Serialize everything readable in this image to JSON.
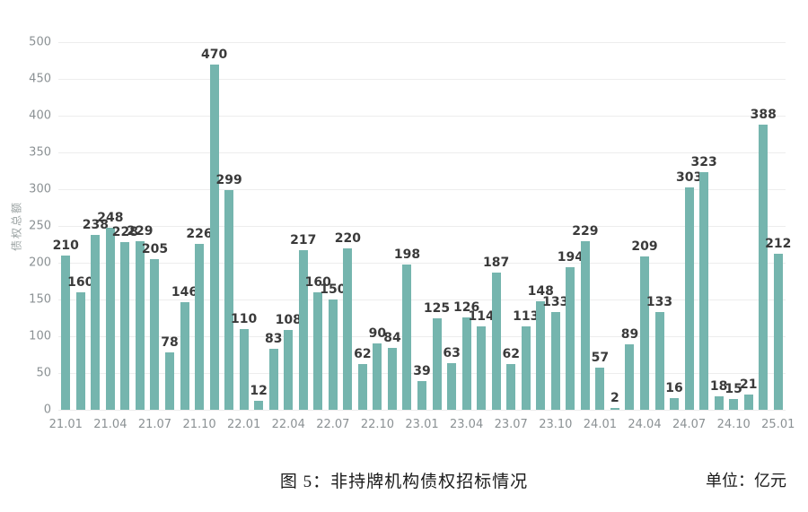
{
  "caption": {
    "title": "图 5：非持牌机构债权招标情况",
    "unit": "单位：亿元"
  },
  "colors": {
    "bar": "#75b5ae",
    "value_label": "#3a3a3a",
    "tick_label": "#8b9194",
    "gridline": "#ededed",
    "background": "#ffffff"
  },
  "chart_data": {
    "type": "bar",
    "title": "图 5：非持牌机构债权招标情况",
    "unit_label": "单位：亿元",
    "xlabel": "",
    "ylabel": "债权总额",
    "ylim": [
      0,
      500
    ],
    "ytick_step": 50,
    "grid": true,
    "legend": "none",
    "xtick_every": 3,
    "categories": [
      "21.01",
      "21.02",
      "21.03",
      "21.04",
      "21.05",
      "21.06",
      "21.07",
      "21.08",
      "21.09",
      "21.10",
      "21.11",
      "21.12",
      "22.01",
      "22.02",
      "22.03",
      "22.04",
      "22.05",
      "22.06",
      "22.07",
      "22.08",
      "22.09",
      "22.10",
      "22.11",
      "22.12",
      "23.01",
      "23.02",
      "23.03",
      "23.04",
      "23.05",
      "23.06",
      "23.07",
      "23.08",
      "23.09",
      "23.10",
      "23.11",
      "23.12",
      "24.01",
      "24.02",
      "24.03",
      "24.04",
      "24.05",
      "24.06",
      "24.07",
      "24.08",
      "24.09",
      "24.10",
      "24.11",
      "24.12",
      "25.01"
    ],
    "values": [
      210,
      160,
      238,
      248,
      228,
      229,
      205,
      78,
      146,
      226,
      470,
      299,
      110,
      12,
      83,
      108,
      217,
      160,
      150,
      220,
      62,
      90,
      84,
      198,
      39,
      125,
      63,
      126,
      114,
      187,
      62,
      113,
      148,
      133,
      194,
      229,
      57,
      2,
      89,
      209,
      133,
      16,
      303,
      323,
      18,
      15,
      21,
      388,
      212
    ]
  }
}
